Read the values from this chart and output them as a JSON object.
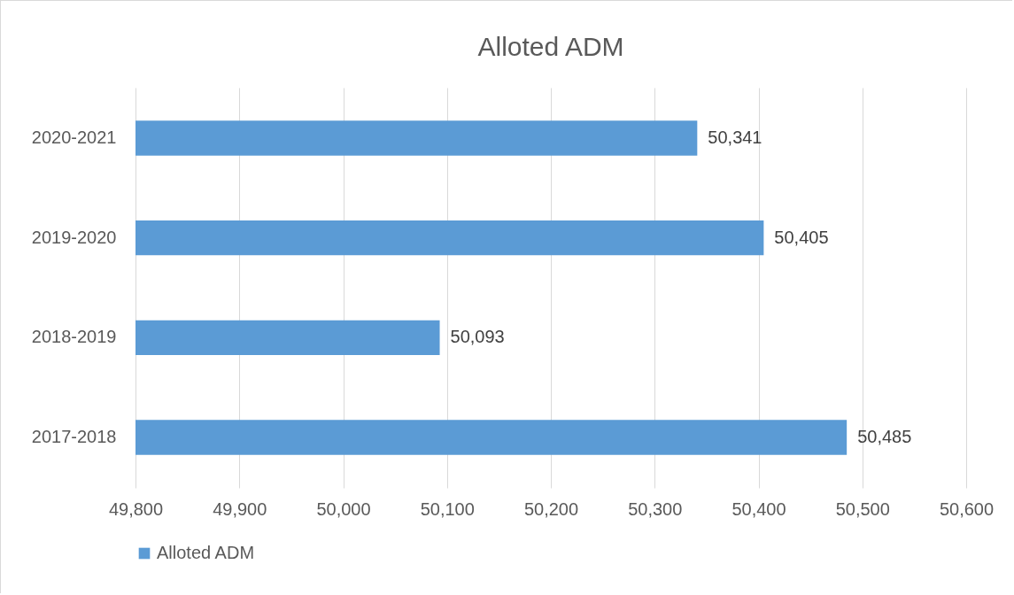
{
  "chart_data": {
    "type": "bar",
    "orientation": "horizontal",
    "title": "Alloted ADM",
    "categories": [
      "2020-2021",
      "2019-2020",
      "2018-2019",
      "2017-2018"
    ],
    "series": [
      {
        "name": "Alloted ADM",
        "color": "#5b9bd5",
        "values": [
          50341,
          50405,
          50093,
          50485
        ],
        "value_labels": [
          "50,341",
          "50,405",
          "50,093",
          "50,485"
        ]
      }
    ],
    "xlim": [
      49800,
      50600
    ],
    "xticks": [
      {
        "value": 49800,
        "label": "49,800"
      },
      {
        "value": 49900,
        "label": "49,900"
      },
      {
        "value": 50000,
        "label": "50,000"
      },
      {
        "value": 50100,
        "label": "50,100"
      },
      {
        "value": 50200,
        "label": "50,200"
      },
      {
        "value": 50300,
        "label": "50,300"
      },
      {
        "value": 50400,
        "label": "50,400"
      },
      {
        "value": 50500,
        "label": "50,500"
      },
      {
        "value": 50600,
        "label": "50,600"
      }
    ],
    "grid": "x",
    "legend": "bottom"
  }
}
